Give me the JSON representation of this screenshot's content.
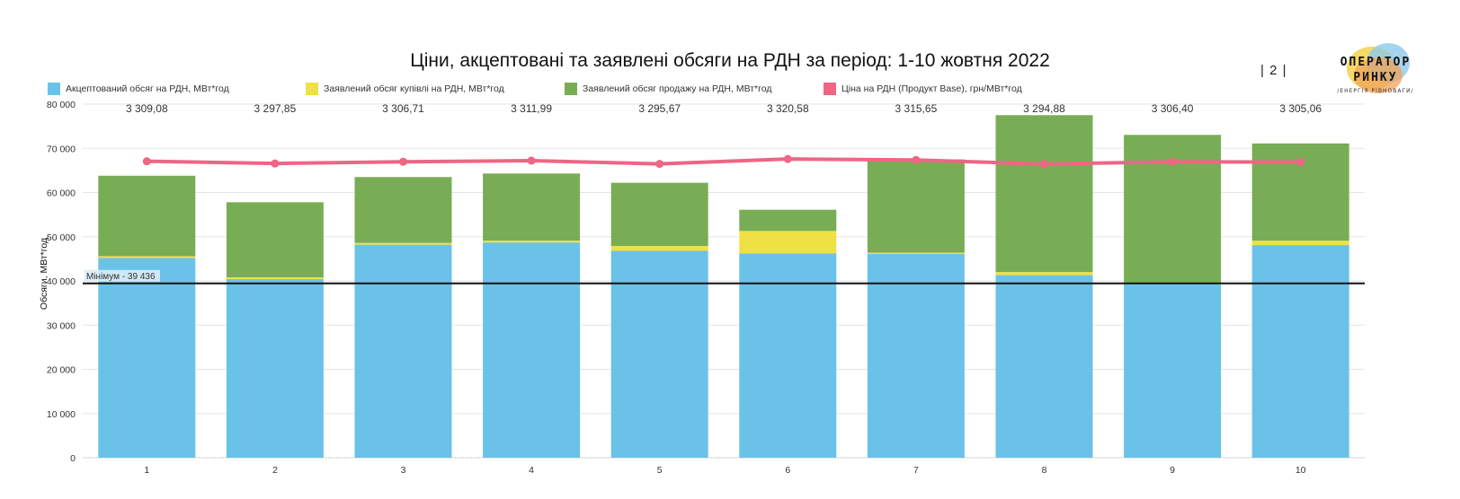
{
  "title": "Ціни, акцептовані та заявлені обсяги на РДН за період: 1-10 жовтня 2022",
  "page_number": "|  2  |",
  "logo": {
    "line1": "ОПЕРАТОР",
    "line2": "РИНКУ",
    "line3": "/ЕНЕРГІЯ РІВНОВАГИ/"
  },
  "colors": {
    "accepted": "#6ac2e8",
    "buy": "#efe144",
    "sell": "#79ad55",
    "price": "#ee6684",
    "min_line": "#111111"
  },
  "legend": [
    {
      "label": "Акцептований обсяг на РДН, МВт*год",
      "color": "#6ac2e8"
    },
    {
      "label": "Заявлений обсяг купівлі на РДН, МВт*год",
      "color": "#efe144"
    },
    {
      "label": "Заявлений обсяг продажу на РДН, МВт*год",
      "color": "#79ad55"
    },
    {
      "label": "Ціна на РДН (Продукт Base), грн/МВт*год",
      "color": "#ee6684"
    }
  ],
  "chart_data": {
    "type": "bar",
    "stacked": true,
    "categories": [
      "1",
      "2",
      "3",
      "4",
      "5",
      "6",
      "7",
      "8",
      "9",
      "10"
    ],
    "ylabel": "Обсяги, МВт*год",
    "ylim": [
      0,
      80000
    ],
    "yticks": [
      0,
      10000,
      20000,
      30000,
      40000,
      50000,
      60000,
      70000,
      80000
    ],
    "ytick_labels": [
      "0",
      "10 000",
      "20 000",
      "30 000",
      "40 000",
      "50 000",
      "60 000",
      "70 000",
      "80 000"
    ],
    "grid": true,
    "series": [
      {
        "name": "Акцептований обсяг на РДН, МВт*год",
        "values": [
          45200,
          40400,
          48200,
          48700,
          46800,
          46200,
          46100,
          41300,
          39436,
          48100
        ]
      },
      {
        "name": "Заявлений обсяг купівлі на РДН, МВт*год",
        "values": [
          400,
          400,
          400,
          400,
          1100,
          5100,
          300,
          700,
          0,
          1000
        ]
      },
      {
        "name": "Заявлений обсяг продажу на РДН, МВт*год",
        "values": [
          18200,
          17000,
          14900,
          15200,
          14300,
          4800,
          21100,
          35500,
          33600,
          22000
        ]
      }
    ],
    "price_line": {
      "name": "Ціна на РДН (Продукт Base), грн/МВт*год",
      "values": [
        3309.08,
        3297.85,
        3306.71,
        3311.99,
        3295.67,
        3320.58,
        3315.65,
        3294.88,
        3306.4,
        3305.06
      ],
      "labels": [
        "3 309,08",
        "3 297,85",
        "3 306,71",
        "3 311,99",
        "3 295,67",
        "3 320,58",
        "3 315,65",
        "3 294,88",
        "3 306,40",
        "3 305,06"
      ],
      "ylim": [
        1800,
        3600
      ]
    },
    "reference_line": {
      "label": "Мінімум - 39 436",
      "value": 39436
    }
  }
}
